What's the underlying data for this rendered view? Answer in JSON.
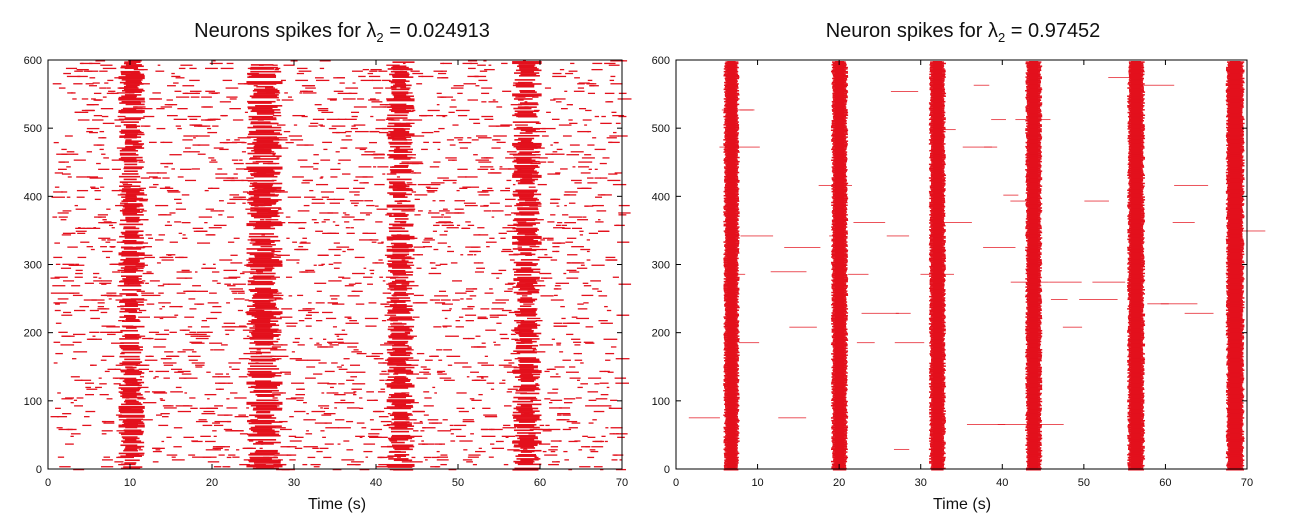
{
  "colors": {
    "spike": "#e3101c",
    "axis": "#000000",
    "background": "#ffffff"
  },
  "chart_data": [
    {
      "type": "scatter",
      "subtype": "raster",
      "title_prefix": "Neurons spikes for λ",
      "title_sub": "2",
      "title_suffix": " = 0.024913",
      "xlabel": "Time (s)",
      "ylabel": "",
      "xlim": [
        0,
        70
      ],
      "ylim": [
        0,
        600
      ],
      "xticks": [
        "0",
        "10",
        "20",
        "30",
        "40",
        "50",
        "60",
        "70"
      ],
      "yticks": [
        "0",
        "100",
        "200",
        "300",
        "400",
        "500",
        "600"
      ],
      "grid": false,
      "legend": "none",
      "burst_windows_s": [
        [
          8.6,
          11.8
        ],
        [
          24.2,
          28.6
        ],
        [
          41.3,
          44.7
        ],
        [
          56.6,
          60.2
        ]
      ],
      "background_firing": "dense asynchronous spikes across all neurons"
    },
    {
      "type": "scatter",
      "subtype": "raster",
      "title_prefix": "Neuron spikes for λ",
      "title_sub": "2",
      "title_suffix": " = 0.97452",
      "xlabel": "Time (s)",
      "ylabel": "",
      "xlim": [
        0,
        70
      ],
      "ylim": [
        0,
        600
      ],
      "xticks": [
        "0",
        "10",
        "20",
        "30",
        "40",
        "50",
        "60",
        "70"
      ],
      "yticks": [
        "0",
        "100",
        "200",
        "300",
        "400",
        "500",
        "600"
      ],
      "grid": false,
      "legend": "none",
      "burst_windows_s": [
        [
          6.1,
          7.5
        ],
        [
          19.3,
          20.8
        ],
        [
          31.3,
          32.8
        ],
        [
          43.1,
          44.6
        ],
        [
          55.6,
          57.2
        ],
        [
          67.7,
          69.4
        ]
      ],
      "background_firing": "sparse"
    }
  ]
}
